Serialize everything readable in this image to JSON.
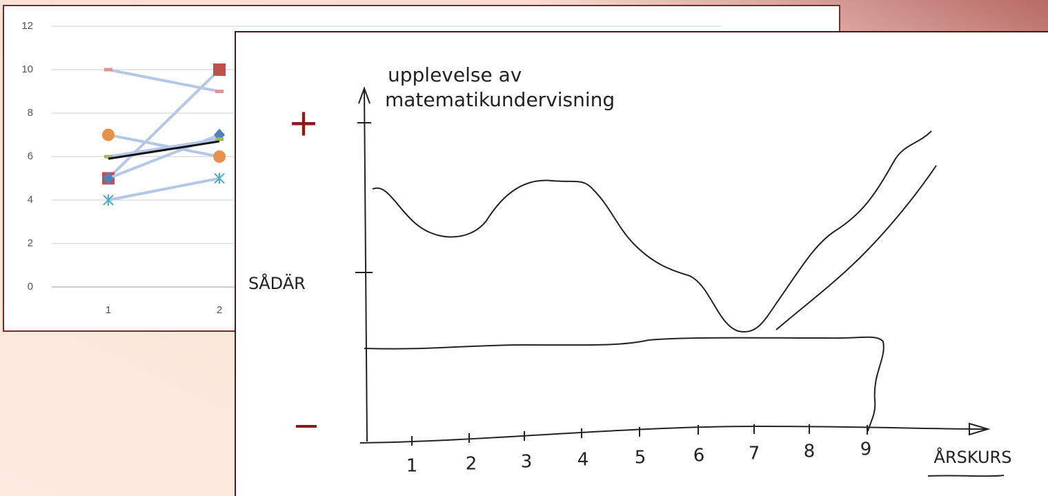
{
  "chart_data": {
    "type": "line",
    "categories": [
      1,
      2
    ],
    "ylim": [
      0,
      12
    ],
    "yticks": [
      0,
      2,
      4,
      6,
      8,
      10,
      12
    ],
    "grid": true,
    "series": [
      {
        "color": "#c0504d",
        "marker": "square",
        "values": [
          5,
          10
        ]
      },
      {
        "color": "#e6904a",
        "marker": "circle",
        "values": [
          7,
          6
        ]
      },
      {
        "color": "#4f81bd",
        "marker": "diamond",
        "values": [
          5,
          7
        ]
      },
      {
        "color": "#4bacc6",
        "marker": "star",
        "values": [
          4,
          5
        ]
      },
      {
        "color": "#d99694",
        "marker": "dash",
        "values": [
          10,
          9
        ]
      },
      {
        "color": "#9bbb59",
        "marker": "dash",
        "values": [
          6,
          6.8
        ]
      },
      {
        "color": "#111111",
        "marker": "none",
        "values": [
          5.9,
          6.7
        ]
      }
    ]
  },
  "sketch": {
    "y_label": [
      "upplevelse av",
      "matematikundervisning"
    ],
    "plus": "+",
    "middle": "SÅDÄR",
    "minus": "−",
    "x_ticks": [
      1,
      2,
      3,
      4,
      5,
      6,
      7,
      8,
      9
    ],
    "x_label": "ÅRSKURS"
  }
}
